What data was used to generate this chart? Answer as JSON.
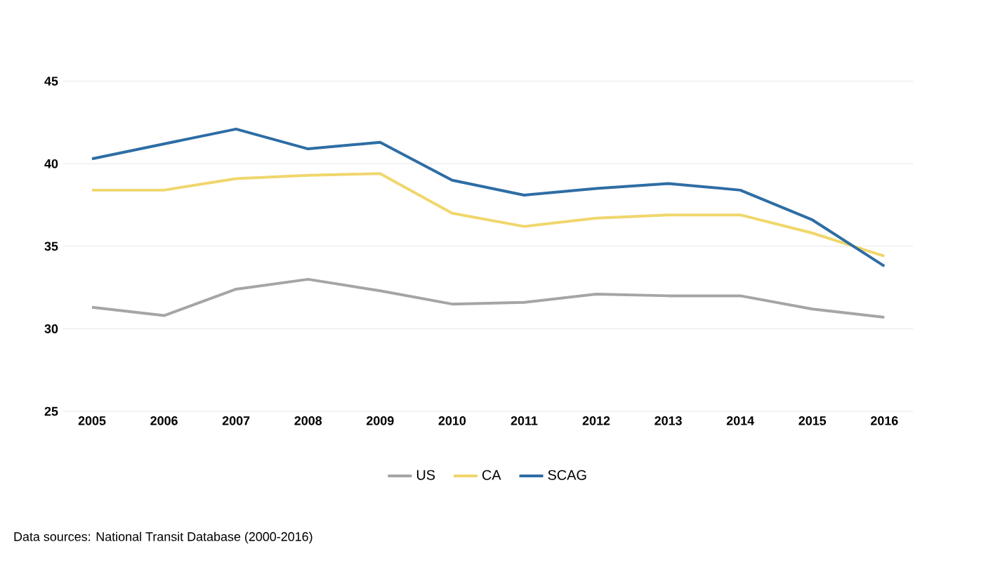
{
  "chart_data": {
    "type": "line",
    "categories": [
      "2005",
      "2006",
      "2007",
      "2008",
      "2009",
      "2010",
      "2011",
      "2012",
      "2013",
      "2014",
      "2015",
      "2016"
    ],
    "series": [
      {
        "name": "US",
        "color": "#a5a5a5",
        "values": [
          31.3,
          30.8,
          32.4,
          33.0,
          32.3,
          31.5,
          31.6,
          32.1,
          32.0,
          32.0,
          31.2,
          30.7
        ]
      },
      {
        "name": "CA",
        "color": "#f0d66c",
        "values": [
          38.4,
          38.4,
          39.1,
          39.3,
          39.4,
          37.0,
          36.2,
          36.7,
          36.9,
          36.9,
          35.8,
          34.4
        ]
      },
      {
        "name": "SCAG",
        "color": "#2e6da4",
        "values": [
          40.3,
          41.2,
          42.1,
          40.9,
          41.3,
          39.0,
          38.1,
          38.5,
          38.8,
          38.4,
          36.6,
          33.8
        ]
      }
    ],
    "ylim": [
      25,
      45
    ],
    "yticks": [
      25,
      30,
      35,
      40,
      45
    ],
    "grid": "y",
    "legend": "bottom",
    "line_style": "solid",
    "marker": "none",
    "annotations": [
      "Data sources: National Transit Database (2000-2016)"
    ]
  }
}
